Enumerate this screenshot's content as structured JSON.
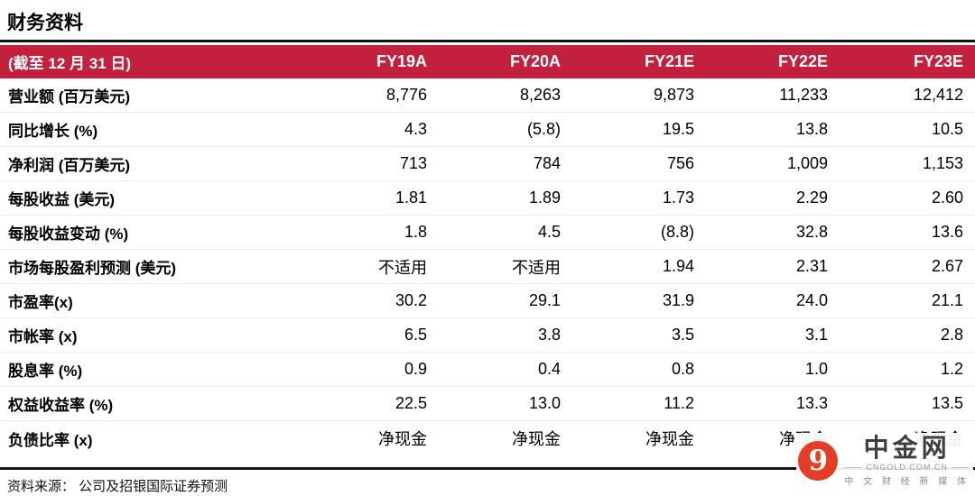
{
  "page": {
    "title": "财务资料",
    "source": "资料来源： 公司及招银国际证券预测"
  },
  "colors": {
    "header_bg": "#C2203C",
    "rule": "#141414",
    "watermark_red": "#E63C23"
  },
  "table": {
    "header": {
      "label": "(截至 12 月 31 日)",
      "columns": [
        "FY19A",
        "FY20A",
        "FY21E",
        "FY22E",
        "FY23E"
      ]
    },
    "rows": [
      {
        "label": "营业额 (百万美元)",
        "values": [
          "8,776",
          "8,263",
          "9,873",
          "11,233",
          "12,412"
        ]
      },
      {
        "label": "同比增长 (%)",
        "values": [
          "4.3",
          "(5.8)",
          "19.5",
          "13.8",
          "10.5"
        ]
      },
      {
        "label": "净利润 (百万美元)",
        "values": [
          "713",
          "784",
          "756",
          "1,009",
          "1,153"
        ]
      },
      {
        "label": "每股收益 (美元)",
        "values": [
          "1.81",
          "1.89",
          "1.73",
          "2.29",
          "2.60"
        ]
      },
      {
        "label": "每股收益变动 (%)",
        "values": [
          "1.8",
          "4.5",
          "(8.8)",
          "32.8",
          "13.6"
        ]
      },
      {
        "label": "市场每股盈利预测 (美元)",
        "values": [
          "不适用",
          "不适用",
          "1.94",
          "2.31",
          "2.67"
        ]
      },
      {
        "label": "市盈率(x)",
        "values": [
          "30.2",
          "29.1",
          "31.9",
          "24.0",
          "21.1"
        ]
      },
      {
        "label": "市帐率 (x)",
        "values": [
          "6.5",
          "3.8",
          "3.5",
          "3.1",
          "2.8"
        ]
      },
      {
        "label": "股息率 (%)",
        "values": [
          "0.9",
          "0.4",
          "0.8",
          "1.0",
          "1.2"
        ]
      },
      {
        "label": "权益收益率 (%)",
        "values": [
          "22.5",
          "13.0",
          "11.2",
          "13.3",
          "13.5"
        ]
      },
      {
        "label": "负债比率 (x)",
        "values": [
          "净现金",
          "净现金",
          "净现金",
          "净现金",
          "净现金"
        ]
      }
    ]
  },
  "watermark": {
    "logo_glyph": "9",
    "name": "中金网",
    "domain": "CNGOLD.COM.CN",
    "tagline": "中 文 财 经 新 媒 体"
  }
}
